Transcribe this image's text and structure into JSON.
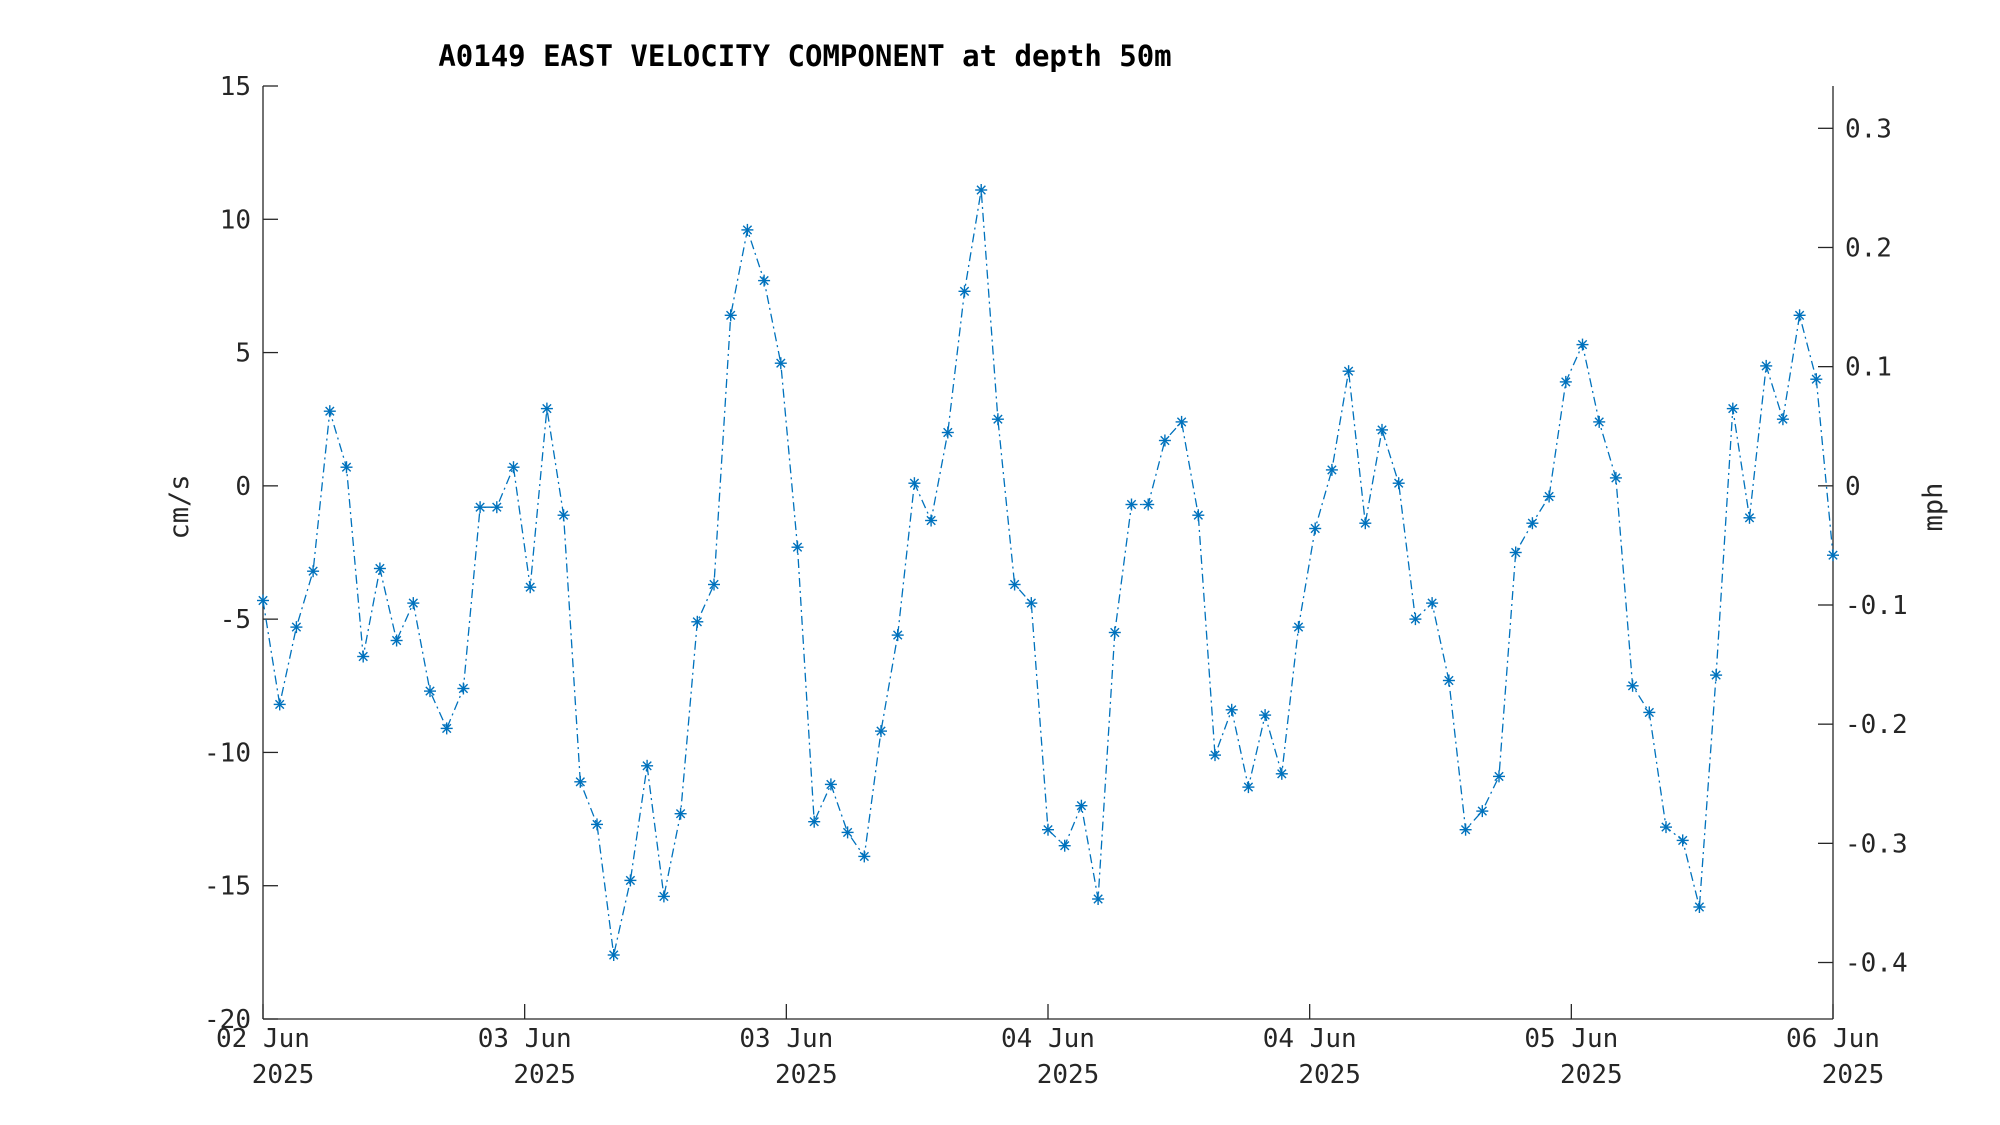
{
  "chart_data": {
    "type": "line",
    "title": "A0149 EAST VELOCITY COMPONENT at depth 50m",
    "xlabel": "",
    "ylabel": "cm/s",
    "ylabel_right": "mph",
    "ylim": [
      -20,
      15
    ],
    "yticks": [
      15,
      10,
      5,
      0,
      -5,
      -10,
      -15,
      -20
    ],
    "y2lim": [
      -0.4474,
      0.3355
    ],
    "y2ticks": [
      0.3,
      0.2,
      0.1,
      0,
      -0.1,
      -0.2,
      -0.3,
      -0.4
    ],
    "x_tick_labels": [
      {
        "line1": "02 Jun",
        "line2": "2025"
      },
      {
        "line1": "03 Jun",
        "line2": "2025"
      },
      {
        "line1": "03 Jun",
        "line2": "2025"
      },
      {
        "line1": "04 Jun",
        "line2": "2025"
      },
      {
        "line1": "04 Jun",
        "line2": "2025"
      },
      {
        "line1": "05 Jun",
        "line2": "2025"
      },
      {
        "line1": "06 Jun",
        "line2": "2025"
      }
    ],
    "grid": false,
    "color": "#0072BD",
    "line_style": "dash-dot",
    "marker": "asterisk",
    "series": [
      {
        "values": [
          -4.3,
          -8.2,
          -5.3,
          -3.2,
          2.8,
          0.7,
          -6.4,
          -3.1,
          -5.8,
          -4.4,
          -7.7,
          -9.1,
          -7.6,
          -0.8,
          -0.8,
          0.7,
          -3.8,
          2.9,
          -1.1,
          -11.1,
          -12.7,
          -17.6,
          -14.8,
          -10.5,
          -15.4,
          -12.3,
          -5.1,
          -3.7,
          6.4,
          9.6,
          7.7,
          4.6,
          -2.3,
          -12.6,
          -11.2,
          -13.0,
          -13.9,
          -9.2,
          -5.6,
          0.1,
          -1.3,
          2.0,
          7.3,
          11.1,
          2.5,
          -3.7,
          -4.4,
          -12.9,
          -13.5,
          -12.0,
          -15.5,
          -5.5,
          -0.7,
          -0.7,
          1.7,
          2.4,
          -1.1,
          -10.1,
          -8.4,
          -11.3,
          -8.6,
          -10.8,
          -5.3,
          -1.6,
          0.6,
          4.3,
          -1.4,
          2.1,
          0.1,
          -5.0,
          -4.4,
          -7.3,
          -12.9,
          -12.2,
          -10.9,
          -2.5,
          -1.4,
          -0.4,
          3.9,
          5.3,
          2.4,
          0.3,
          -7.5,
          -8.5,
          -12.8,
          -13.3,
          -15.8,
          -7.1,
          2.9,
          -1.2,
          4.5,
          2.5,
          6.4,
          4.0,
          -2.6
        ]
      }
    ]
  }
}
